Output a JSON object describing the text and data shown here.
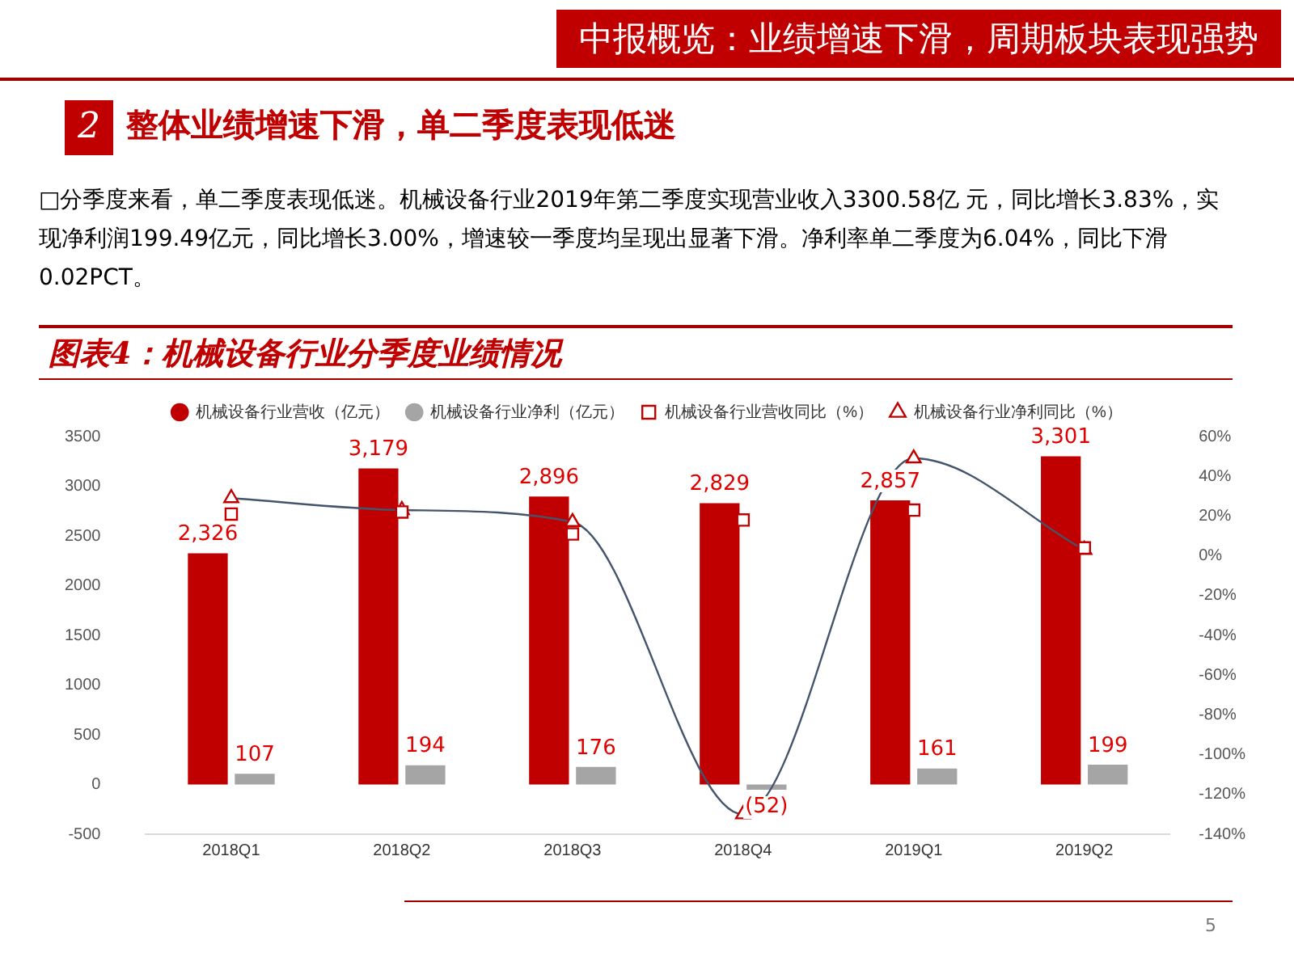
{
  "chart_data": {
    "type": "bar",
    "title": "图表4：机械设备行业分季度业绩情况",
    "annotations": [
      "中报概览：业绩增速下滑，周期板块表现强势",
      "2",
      "整体业绩增速下滑，单二季度表现低迷",
      "□分季度来看，单二季度表现低迷。机械设备行业2019年第二季度实现营业收入3300.58亿 元，同比增长3.83%，实现净利润199.49亿元，同比增长3.00%，增速较一季度均呈现出显著下滑。净利率单二季度为6.04%，同比下滑0.02PCT。",
      "5"
    ],
    "categories": [
      "2018Q1",
      "2018Q2",
      "2018Q3",
      "2018Q4",
      "2019Q1",
      "2019Q2"
    ],
    "series": [
      {
        "name": "机械设备行业营收（亿元）",
        "color": "#c00000",
        "values": [
          2326,
          3179,
          2896,
          2829,
          2857,
          3301
        ],
        "value_labels": [
          "2,326",
          "3,179",
          "2,896",
          "2,829",
          "2,857",
          "3,301"
        ]
      },
      {
        "name": "机械设备行业净利（亿元）",
        "color": "#a5a5a5",
        "values": [
          107,
          194,
          176,
          -52,
          161,
          199
        ],
        "value_labels": [
          "107",
          "194",
          "176",
          "(52)",
          "161",
          "199"
        ]
      },
      {
        "name": "机械设备行业营收同比（%）",
        "type": "scatter",
        "axis": "y2",
        "marker": "square",
        "color": "#c00000",
        "values": [
          21,
          22,
          11,
          18,
          23,
          4
        ]
      },
      {
        "name": "机械设备行业净利同比（%）",
        "type": "line",
        "axis": "y2",
        "marker": "triangle",
        "color": "#44546a",
        "values": [
          29,
          23,
          17,
          -130,
          49,
          3.0
        ]
      }
    ],
    "ylim": [
      -500,
      3500
    ],
    "yticks": [
      -500,
      0,
      500,
      1000,
      1500,
      2000,
      2500,
      3000,
      3500
    ],
    "y2lim": [
      -140,
      60
    ],
    "y2ticks": [
      {
        "value": -140,
        "label": "-140%"
      },
      {
        "value": -120,
        "label": "-120%"
      },
      {
        "value": -100,
        "label": "-100%"
      },
      {
        "value": -80,
        "label": "-80%"
      },
      {
        "value": -60,
        "label": "-60%"
      },
      {
        "value": -40,
        "label": "-40%"
      },
      {
        "value": -20,
        "label": "-20%"
      },
      {
        "value": 0,
        "label": "0%"
      },
      {
        "value": 20,
        "label": "20%"
      },
      {
        "value": 40,
        "label": "40%"
      },
      {
        "value": 60,
        "label": "60%"
      }
    ],
    "legend": "top",
    "grid": false
  }
}
